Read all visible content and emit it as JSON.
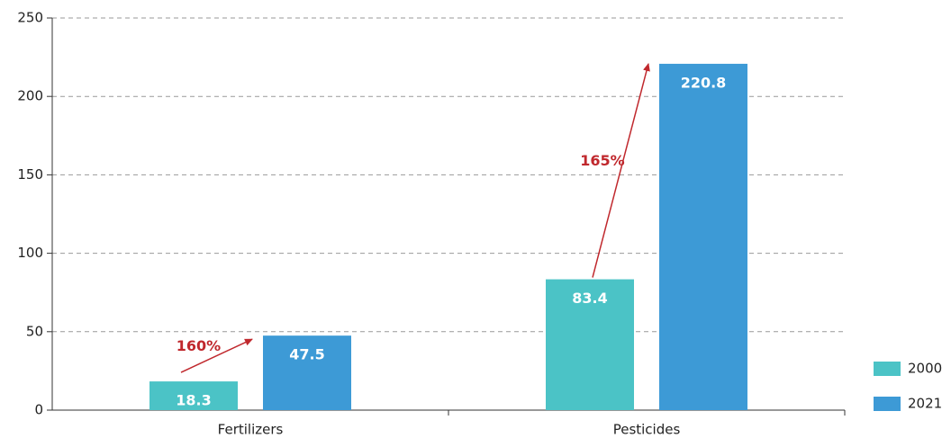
{
  "chart_data": {
    "type": "bar",
    "categories": [
      "Fertilizers",
      "Pesticides"
    ],
    "series": [
      {
        "name": "2000",
        "color": "#4bc3c6",
        "values": [
          18.3,
          83.4
        ]
      },
      {
        "name": "2021",
        "color": "#3d9ad6",
        "values": [
          47.5,
          220.8
        ]
      }
    ],
    "annotations": [
      "160%",
      "165%"
    ],
    "annotation_color": "#c0282d",
    "ylim": [
      0,
      250
    ],
    "yticks": [
      0,
      50,
      100,
      150,
      200,
      250
    ],
    "grid": true,
    "legend": "lower right"
  }
}
